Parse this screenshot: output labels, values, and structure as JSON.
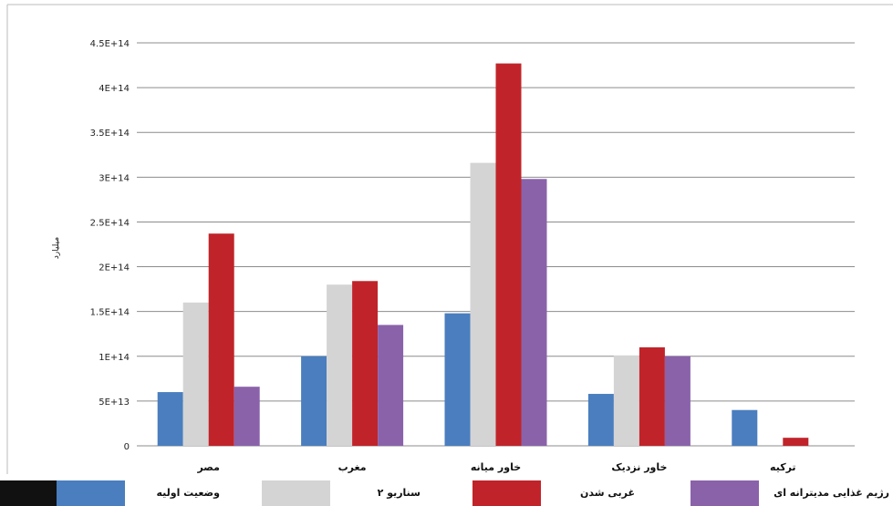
{
  "chart_data": {
    "type": "bar",
    "title": "",
    "xlabel": "",
    "ylabel": "میلیارد",
    "categories": [
      "مصر",
      "مغرب",
      "خاور میانه",
      "خاور نزدیک",
      "ترکیه"
    ],
    "ylim": [
      0,
      450000000000000
    ],
    "yticks": [
      0,
      50000000000000,
      100000000000000,
      150000000000000,
      200000000000000,
      250000000000000,
      300000000000000,
      350000000000000,
      400000000000000,
      450000000000000
    ],
    "ytick_labels": [
      "0",
      "5E+13",
      "1E+14",
      "1.5E+14",
      "2E+14",
      "2.5E+14",
      "3E+14",
      "3.5E+14",
      "4E+14",
      "4.5E+14"
    ],
    "grid": true,
    "legend_position": "bottom",
    "series": [
      {
        "name": "وضعیت اولیه",
        "color": "#4a7ebf",
        "values": [
          60000000000000,
          100000000000000,
          148000000000000,
          58000000000000,
          40000000000000
        ]
      },
      {
        "name": "سناریو ۲",
        "color": "#d4d4d4",
        "values": [
          160000000000000,
          180000000000000,
          316000000000000,
          101000000000000,
          0
        ]
      },
      {
        "name": "غربی شدن",
        "color": "#c0242a",
        "values": [
          237000000000000,
          184000000000000,
          427000000000000,
          110000000000000,
          9000000000000
        ]
      },
      {
        "name": "رژیم غذایی مدیترانه ای",
        "color": "#8a62aa",
        "values": [
          66000000000000,
          135000000000000,
          298000000000000,
          100000000000000,
          0
        ]
      }
    ]
  }
}
